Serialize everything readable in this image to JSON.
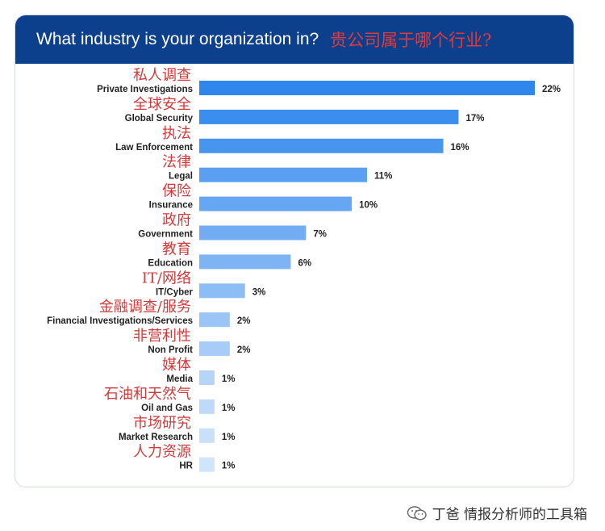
{
  "header": {
    "title": "What industry is your organization in?",
    "title_zh": "贵公司属于哪个行业?"
  },
  "footer": {
    "text": "丁爸 情报分析师的工具箱",
    "icon": "wechat-icon"
  },
  "chart_data": {
    "type": "bar",
    "orientation": "horizontal",
    "title": "What industry is your organization in?",
    "xlim": [
      0,
      22
    ],
    "grid": false,
    "categories": [
      "Private Investigations",
      "Global Security",
      "Law Enforcement",
      "Legal",
      "Insurance",
      "Government",
      "Education",
      "IT/Cyber",
      "Financial Investigations/Services",
      "Non Profit",
      "Media",
      "Oil and Gas",
      "Market Research",
      "HR"
    ],
    "categories_zh": [
      "私人调查",
      "全球安全",
      "执法",
      "法律",
      "保险",
      "政府",
      "教育",
      "IT/网络",
      "金融调查/服务",
      "非营利性",
      "媒体",
      "石油和天然气",
      "市场研究",
      "人力资源"
    ],
    "values": [
      22,
      17,
      16,
      11,
      10,
      7,
      6,
      3,
      2,
      2,
      1,
      1,
      1,
      1
    ],
    "value_labels": [
      "22%",
      "17%",
      "16%",
      "11%",
      "10%",
      "7%",
      "6%",
      "3%",
      "2%",
      "2%",
      "1%",
      "1%",
      "1%",
      "1%"
    ],
    "colors": [
      "#2f86ec",
      "#3c8eee",
      "#4795ef",
      "#5a9ff1",
      "#66a6f2",
      "#72adf3",
      "#7eb4f4",
      "#8cbdf5",
      "#9ac5f6",
      "#a6ccf7",
      "#b4d4f8",
      "#bfdaf9",
      "#c8e0fa",
      "#d0e5fb"
    ]
  }
}
